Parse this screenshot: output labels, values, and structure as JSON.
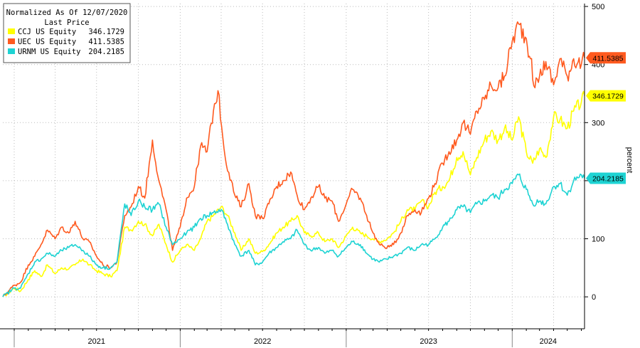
{
  "chart_data": {
    "type": "line",
    "ylabel": "percent",
    "ylim": [
      -55,
      505
    ],
    "yticks": [
      0,
      100,
      200,
      300,
      400,
      500
    ],
    "y_tick_labels": [
      "0",
      "100",
      "200",
      "300",
      "400",
      "500"
    ],
    "x_range": [
      "2020-12-07",
      "2024-06-08"
    ],
    "x_year_labels": [
      {
        "label": "2021",
        "mid": "2021-07-01"
      },
      {
        "label": "2022",
        "mid": "2022-07-01"
      },
      {
        "label": "2023",
        "mid": "2023-07-01"
      },
      {
        "label": "2024",
        "mid": "2024-03-20"
      }
    ],
    "x_year_boundaries": [
      "2021-01-01",
      "2022-01-01",
      "2023-01-01",
      "2024-01-01"
    ],
    "grid": true,
    "legend": {
      "position": "top-left",
      "title": "Normalized As Of 12/07/2020",
      "subtitle": "Last Price"
    },
    "series": [
      {
        "name": "CCJ US Equity",
        "last": "346.1729",
        "color": "#ffff00",
        "points": [
          [
            "2020-12-07",
            0
          ],
          [
            "2021-01-01",
            15
          ],
          [
            "2021-01-15",
            10
          ],
          [
            "2021-02-01",
            30
          ],
          [
            "2021-02-15",
            45
          ],
          [
            "2021-03-01",
            35
          ],
          [
            "2021-03-15",
            55
          ],
          [
            "2021-04-01",
            40
          ],
          [
            "2021-04-15",
            50
          ],
          [
            "2021-05-01",
            48
          ],
          [
            "2021-05-15",
            55
          ],
          [
            "2021-06-01",
            65
          ],
          [
            "2021-06-15",
            55
          ],
          [
            "2021-07-01",
            45
          ],
          [
            "2021-07-15",
            40
          ],
          [
            "2021-08-01",
            35
          ],
          [
            "2021-08-15",
            45
          ],
          [
            "2021-09-01",
            120
          ],
          [
            "2021-09-15",
            115
          ],
          [
            "2021-10-01",
            130
          ],
          [
            "2021-10-15",
            125
          ],
          [
            "2021-11-01",
            105
          ],
          [
            "2021-11-15",
            125
          ],
          [
            "2021-12-01",
            90
          ],
          [
            "2021-12-15",
            60
          ],
          [
            "2022-01-01",
            80
          ],
          [
            "2022-01-15",
            90
          ],
          [
            "2022-02-01",
            80
          ],
          [
            "2022-02-15",
            100
          ],
          [
            "2022-03-01",
            130
          ],
          [
            "2022-03-15",
            140
          ],
          [
            "2022-04-01",
            155
          ],
          [
            "2022-04-15",
            140
          ],
          [
            "2022-05-01",
            110
          ],
          [
            "2022-05-15",
            80
          ],
          [
            "2022-06-01",
            100
          ],
          [
            "2022-06-15",
            75
          ],
          [
            "2022-07-01",
            78
          ],
          [
            "2022-07-15",
            90
          ],
          [
            "2022-08-01",
            110
          ],
          [
            "2022-08-15",
            120
          ],
          [
            "2022-09-01",
            130
          ],
          [
            "2022-09-15",
            140
          ],
          [
            "2022-10-01",
            110
          ],
          [
            "2022-10-15",
            105
          ],
          [
            "2022-11-01",
            110
          ],
          [
            "2022-11-15",
            95
          ],
          [
            "2022-12-01",
            100
          ],
          [
            "2022-12-15",
            85
          ],
          [
            "2023-01-01",
            105
          ],
          [
            "2023-01-15",
            120
          ],
          [
            "2023-02-01",
            110
          ],
          [
            "2023-02-15",
            105
          ],
          [
            "2023-03-01",
            100
          ],
          [
            "2023-03-15",
            95
          ],
          [
            "2023-04-01",
            100
          ],
          [
            "2023-04-15",
            110
          ],
          [
            "2023-05-01",
            130
          ],
          [
            "2023-05-15",
            150
          ],
          [
            "2023-06-01",
            150
          ],
          [
            "2023-06-15",
            165
          ],
          [
            "2023-07-01",
            155
          ],
          [
            "2023-07-15",
            180
          ],
          [
            "2023-08-01",
            190
          ],
          [
            "2023-08-15",
            200
          ],
          [
            "2023-09-01",
            240
          ],
          [
            "2023-09-15",
            250
          ],
          [
            "2023-10-01",
            210
          ],
          [
            "2023-10-15",
            240
          ],
          [
            "2023-11-01",
            270
          ],
          [
            "2023-11-15",
            285
          ],
          [
            "2023-12-01",
            270
          ],
          [
            "2023-12-15",
            290
          ],
          [
            "2024-01-01",
            270
          ],
          [
            "2024-01-15",
            310
          ],
          [
            "2024-02-01",
            250
          ],
          [
            "2024-02-15",
            230
          ],
          [
            "2024-03-01",
            255
          ],
          [
            "2024-03-15",
            240
          ],
          [
            "2024-04-01",
            310
          ],
          [
            "2024-04-15",
            305
          ],
          [
            "2024-05-01",
            290
          ],
          [
            "2024-05-15",
            320
          ],
          [
            "2024-06-01",
            335
          ],
          [
            "2024-06-08",
            346.17
          ]
        ]
      },
      {
        "name": "UEC US Equity",
        "last": "411.5385",
        "color": "#ff5a1f",
        "points": [
          [
            "2020-12-07",
            0
          ],
          [
            "2021-01-01",
            20
          ],
          [
            "2021-01-15",
            25
          ],
          [
            "2021-02-01",
            55
          ],
          [
            "2021-02-15",
            70
          ],
          [
            "2021-03-01",
            90
          ],
          [
            "2021-03-15",
            115
          ],
          [
            "2021-04-01",
            100
          ],
          [
            "2021-04-15",
            120
          ],
          [
            "2021-05-01",
            110
          ],
          [
            "2021-05-15",
            130
          ],
          [
            "2021-06-01",
            100
          ],
          [
            "2021-06-15",
            95
          ],
          [
            "2021-07-01",
            70
          ],
          [
            "2021-07-15",
            55
          ],
          [
            "2021-08-01",
            50
          ],
          [
            "2021-08-15",
            60
          ],
          [
            "2021-09-01",
            140
          ],
          [
            "2021-09-15",
            155
          ],
          [
            "2021-10-01",
            190
          ],
          [
            "2021-10-15",
            170
          ],
          [
            "2021-11-01",
            270
          ],
          [
            "2021-11-15",
            200
          ],
          [
            "2021-12-01",
            150
          ],
          [
            "2021-12-15",
            80
          ],
          [
            "2022-01-01",
            120
          ],
          [
            "2022-01-15",
            170
          ],
          [
            "2022-02-01",
            190
          ],
          [
            "2022-02-15",
            260
          ],
          [
            "2022-03-01",
            250
          ],
          [
            "2022-03-15",
            320
          ],
          [
            "2022-03-25",
            355
          ],
          [
            "2022-04-10",
            240
          ],
          [
            "2022-05-01",
            175
          ],
          [
            "2022-05-15",
            155
          ],
          [
            "2022-06-01",
            195
          ],
          [
            "2022-06-15",
            140
          ],
          [
            "2022-07-01",
            135
          ],
          [
            "2022-07-15",
            160
          ],
          [
            "2022-08-01",
            190
          ],
          [
            "2022-08-15",
            200
          ],
          [
            "2022-09-01",
            215
          ],
          [
            "2022-09-15",
            175
          ],
          [
            "2022-10-01",
            150
          ],
          [
            "2022-10-15",
            170
          ],
          [
            "2022-11-01",
            190
          ],
          [
            "2022-11-15",
            170
          ],
          [
            "2022-12-01",
            165
          ],
          [
            "2022-12-15",
            130
          ],
          [
            "2023-01-01",
            160
          ],
          [
            "2023-01-15",
            185
          ],
          [
            "2023-02-01",
            170
          ],
          [
            "2023-02-15",
            140
          ],
          [
            "2023-03-01",
            110
          ],
          [
            "2023-03-15",
            90
          ],
          [
            "2023-04-01",
            85
          ],
          [
            "2023-04-15",
            90
          ],
          [
            "2023-05-01",
            110
          ],
          [
            "2023-05-15",
            140
          ],
          [
            "2023-06-01",
            150
          ],
          [
            "2023-06-15",
            145
          ],
          [
            "2023-07-01",
            170
          ],
          [
            "2023-07-15",
            195
          ],
          [
            "2023-08-01",
            230
          ],
          [
            "2023-08-15",
            250
          ],
          [
            "2023-09-01",
            270
          ],
          [
            "2023-09-15",
            300
          ],
          [
            "2023-10-01",
            280
          ],
          [
            "2023-10-15",
            320
          ],
          [
            "2023-11-01",
            340
          ],
          [
            "2023-11-15",
            365
          ],
          [
            "2023-12-01",
            360
          ],
          [
            "2023-12-15",
            380
          ],
          [
            "2024-01-01",
            440
          ],
          [
            "2024-01-15",
            470
          ],
          [
            "2024-02-01",
            445
          ],
          [
            "2024-02-10",
            410
          ],
          [
            "2024-02-20",
            360
          ],
          [
            "2024-03-01",
            380
          ],
          [
            "2024-03-15",
            405
          ],
          [
            "2024-04-01",
            365
          ],
          [
            "2024-04-15",
            410
          ],
          [
            "2024-05-01",
            380
          ],
          [
            "2024-05-15",
            410
          ],
          [
            "2024-06-01",
            400
          ],
          [
            "2024-06-08",
            411.54
          ]
        ]
      },
      {
        "name": "URNM US Equity",
        "last": "204.2185",
        "color": "#1ed3d3",
        "points": [
          [
            "2020-12-07",
            0
          ],
          [
            "2021-01-01",
            15
          ],
          [
            "2021-01-15",
            15
          ],
          [
            "2021-02-01",
            40
          ],
          [
            "2021-02-15",
            60
          ],
          [
            "2021-03-01",
            65
          ],
          [
            "2021-03-15",
            75
          ],
          [
            "2021-04-01",
            70
          ],
          [
            "2021-04-15",
            80
          ],
          [
            "2021-05-01",
            85
          ],
          [
            "2021-05-15",
            90
          ],
          [
            "2021-06-01",
            80
          ],
          [
            "2021-06-15",
            70
          ],
          [
            "2021-07-01",
            55
          ],
          [
            "2021-07-15",
            50
          ],
          [
            "2021-08-01",
            50
          ],
          [
            "2021-08-15",
            60
          ],
          [
            "2021-09-01",
            160
          ],
          [
            "2021-09-15",
            140
          ],
          [
            "2021-10-01",
            165
          ],
          [
            "2021-10-15",
            155
          ],
          [
            "2021-11-01",
            150
          ],
          [
            "2021-11-15",
            160
          ],
          [
            "2021-12-01",
            120
          ],
          [
            "2021-12-15",
            90
          ],
          [
            "2022-01-01",
            100
          ],
          [
            "2022-01-15",
            110
          ],
          [
            "2022-02-01",
            120
          ],
          [
            "2022-02-15",
            135
          ],
          [
            "2022-03-01",
            140
          ],
          [
            "2022-03-15",
            145
          ],
          [
            "2022-04-01",
            150
          ],
          [
            "2022-04-15",
            125
          ],
          [
            "2022-05-01",
            90
          ],
          [
            "2022-05-15",
            70
          ],
          [
            "2022-06-01",
            80
          ],
          [
            "2022-06-15",
            55
          ],
          [
            "2022-07-01",
            60
          ],
          [
            "2022-07-15",
            75
          ],
          [
            "2022-08-01",
            85
          ],
          [
            "2022-08-15",
            95
          ],
          [
            "2022-09-01",
            100
          ],
          [
            "2022-09-15",
            115
          ],
          [
            "2022-10-01",
            90
          ],
          [
            "2022-10-15",
            80
          ],
          [
            "2022-11-01",
            85
          ],
          [
            "2022-11-15",
            75
          ],
          [
            "2022-12-01",
            80
          ],
          [
            "2022-12-15",
            70
          ],
          [
            "2023-01-01",
            85
          ],
          [
            "2023-01-15",
            95
          ],
          [
            "2023-02-01",
            90
          ],
          [
            "2023-02-15",
            75
          ],
          [
            "2023-03-01",
            65
          ],
          [
            "2023-03-15",
            60
          ],
          [
            "2023-04-01",
            65
          ],
          [
            "2023-04-15",
            70
          ],
          [
            "2023-05-01",
            75
          ],
          [
            "2023-05-15",
            85
          ],
          [
            "2023-06-01",
            80
          ],
          [
            "2023-06-15",
            90
          ],
          [
            "2023-07-01",
            90
          ],
          [
            "2023-07-15",
            100
          ],
          [
            "2023-08-01",
            120
          ],
          [
            "2023-08-15",
            130
          ],
          [
            "2023-09-01",
            150
          ],
          [
            "2023-09-15",
            155
          ],
          [
            "2023-10-01",
            145
          ],
          [
            "2023-10-15",
            160
          ],
          [
            "2023-11-01",
            165
          ],
          [
            "2023-11-15",
            175
          ],
          [
            "2023-12-01",
            170
          ],
          [
            "2023-12-15",
            185
          ],
          [
            "2024-01-01",
            195
          ],
          [
            "2024-01-15",
            210
          ],
          [
            "2024-02-01",
            185
          ],
          [
            "2024-02-15",
            160
          ],
          [
            "2024-03-01",
            165
          ],
          [
            "2024-03-15",
            160
          ],
          [
            "2024-04-01",
            190
          ],
          [
            "2024-04-15",
            195
          ],
          [
            "2024-05-01",
            175
          ],
          [
            "2024-05-15",
            200
          ],
          [
            "2024-06-01",
            210
          ],
          [
            "2024-06-08",
            204.22
          ]
        ]
      }
    ]
  }
}
